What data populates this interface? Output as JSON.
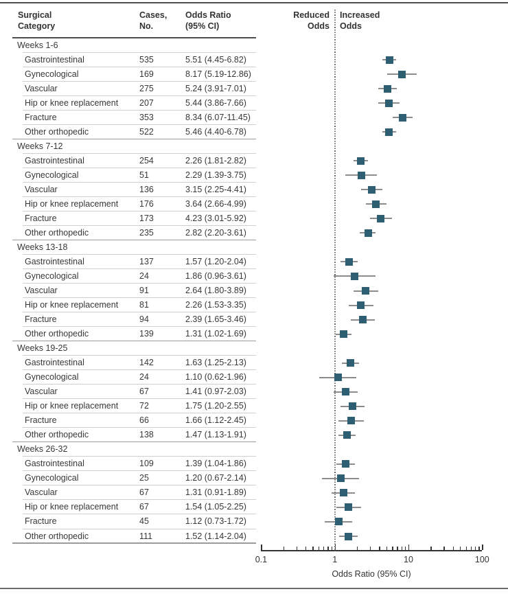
{
  "headers": {
    "col1_line1": "Surgical",
    "col1_line2": "Category",
    "col2_line1": "Cases,",
    "col2_line2": "No.",
    "col3_line1": "Odds Ratio",
    "col3_line2": "(95% CI)",
    "reduced_line1": "Reduced",
    "reduced_line2": "Odds",
    "increased_line1": "Increased",
    "increased_line2": "Odds"
  },
  "plot": {
    "axis_title": "Odds Ratio (95% CI)",
    "axis_scale": "log",
    "axis_range": [
      0.1,
      100
    ],
    "major_ticks": [
      0.1,
      1,
      10,
      100
    ],
    "major_tick_labels": [
      "0.1",
      "1",
      "10",
      "100"
    ],
    "reference_line_at": 1,
    "marker_color": "#2e5e72",
    "ci_color": "#8c8c8c",
    "marker_shape": "square"
  },
  "chart_data": {
    "type": "forest",
    "x_axis": {
      "label": "Odds Ratio (95% CI)",
      "scale": "log",
      "range": [
        0.1,
        100
      ],
      "ticks": [
        0.1,
        1,
        10,
        100
      ]
    },
    "legend_left": "Reduced Odds",
    "legend_right": "Increased Odds",
    "groups": [
      {
        "label": "Weeks 1-6",
        "rows": [
          {
            "category": "Gastrointestinal",
            "cases": "535",
            "or_text": "5.51 (4.45-6.82)",
            "or": 5.51,
            "lo": 4.45,
            "hi": 6.82
          },
          {
            "category": "Gynecological",
            "cases": "169",
            "or_text": "8.17 (5.19-12.86)",
            "or": 8.17,
            "lo": 5.19,
            "hi": 12.86
          },
          {
            "category": "Vascular",
            "cases": "275",
            "or_text": "5.24 (3.91-7.01)",
            "or": 5.24,
            "lo": 3.91,
            "hi": 7.01
          },
          {
            "category": "Hip or knee replacement",
            "cases": "207",
            "or_text": "5.44 (3.86-7.66)",
            "or": 5.44,
            "lo": 3.86,
            "hi": 7.66
          },
          {
            "category": "Fracture",
            "cases": "353",
            "or_text": "8.34 (6.07-11.45)",
            "or": 8.34,
            "lo": 6.07,
            "hi": 11.45
          },
          {
            "category": "Other orthopedic",
            "cases": "522",
            "or_text": "5.46 (4.40-6.78)",
            "or": 5.46,
            "lo": 4.4,
            "hi": 6.78
          }
        ]
      },
      {
        "label": "Weeks 7-12",
        "rows": [
          {
            "category": "Gastrointestinal",
            "cases": "254",
            "or_text": "2.26 (1.81-2.82)",
            "or": 2.26,
            "lo": 1.81,
            "hi": 2.82
          },
          {
            "category": "Gynecological",
            "cases": "51",
            "or_text": "2.29 (1.39-3.75)",
            "or": 2.29,
            "lo": 1.39,
            "hi": 3.75
          },
          {
            "category": "Vascular",
            "cases": "136",
            "or_text": "3.15 (2.25-4.41)",
            "or": 3.15,
            "lo": 2.25,
            "hi": 4.41
          },
          {
            "category": "Hip or knee replacement",
            "cases": "176",
            "or_text": "3.64 (2.66-4.99)",
            "or": 3.64,
            "lo": 2.66,
            "hi": 4.99
          },
          {
            "category": "Fracture",
            "cases": "173",
            "or_text": "4.23 (3.01-5.92)",
            "or": 4.23,
            "lo": 3.01,
            "hi": 5.92
          },
          {
            "category": "Other orthopedic",
            "cases": "235",
            "or_text": "2.82 (2.20-3.61)",
            "or": 2.82,
            "lo": 2.2,
            "hi": 3.61
          }
        ]
      },
      {
        "label": "Weeks 13-18",
        "rows": [
          {
            "category": "Gastrointestinal",
            "cases": "137",
            "or_text": "1.57 (1.20-2.04)",
            "or": 1.57,
            "lo": 1.2,
            "hi": 2.04
          },
          {
            "category": "Gynecological",
            "cases": "24",
            "or_text": "1.86 (0.96-3.61)",
            "or": 1.86,
            "lo": 0.96,
            "hi": 3.61
          },
          {
            "category": "Vascular",
            "cases": "91",
            "or_text": "2.64 (1.80-3.89)",
            "or": 2.64,
            "lo": 1.8,
            "hi": 3.89
          },
          {
            "category": "Hip or knee replacement",
            "cases": "81",
            "or_text": "2.26 (1.53-3.35)",
            "or": 2.26,
            "lo": 1.53,
            "hi": 3.35
          },
          {
            "category": "Fracture",
            "cases": "94",
            "or_text": "2.39 (1.65-3.46)",
            "or": 2.39,
            "lo": 1.65,
            "hi": 3.46
          },
          {
            "category": "Other orthopedic",
            "cases": "139",
            "or_text": "1.31 (1.02-1.69)",
            "or": 1.31,
            "lo": 1.02,
            "hi": 1.69
          }
        ]
      },
      {
        "label": "Weeks 19-25",
        "rows": [
          {
            "category": "Gastrointestinal",
            "cases": "142",
            "or_text": "1.63 (1.25-2.13)",
            "or": 1.63,
            "lo": 1.25,
            "hi": 2.13
          },
          {
            "category": "Gynecological",
            "cases": "24",
            "or_text": "1.10 (0.62-1.96)",
            "or": 1.1,
            "lo": 0.62,
            "hi": 1.96
          },
          {
            "category": "Vascular",
            "cases": "67",
            "or_text": "1.41 (0.97-2.03)",
            "or": 1.41,
            "lo": 0.97,
            "hi": 2.03
          },
          {
            "category": "Hip or knee replacement",
            "cases": "72",
            "or_text": "1.75 (1.20-2.55)",
            "or": 1.75,
            "lo": 1.2,
            "hi": 2.55
          },
          {
            "category": "Fracture",
            "cases": "66",
            "or_text": "1.66 (1.12-2.45)",
            "or": 1.66,
            "lo": 1.12,
            "hi": 2.45
          },
          {
            "category": "Other orthopedic",
            "cases": "138",
            "or_text": "1.47 (1.13-1.91)",
            "or": 1.47,
            "lo": 1.13,
            "hi": 1.91
          }
        ]
      },
      {
        "label": "Weeks 26-32",
        "rows": [
          {
            "category": "Gastrointestinal",
            "cases": "109",
            "or_text": "1.39 (1.04-1.86)",
            "or": 1.39,
            "lo": 1.04,
            "hi": 1.86
          },
          {
            "category": "Gynecological",
            "cases": "25",
            "or_text": "1.20 (0.67-2.14)",
            "or": 1.2,
            "lo": 0.67,
            "hi": 2.14
          },
          {
            "category": "Vascular",
            "cases": "67",
            "or_text": "1.31 (0.91-1.89)",
            "or": 1.31,
            "lo": 0.91,
            "hi": 1.89
          },
          {
            "category": "Hip or knee replacement",
            "cases": "67",
            "or_text": "1.54 (1.05-2.25)",
            "or": 1.54,
            "lo": 1.05,
            "hi": 2.25
          },
          {
            "category": "Fracture",
            "cases": "45",
            "or_text": "1.12 (0.73-1.72)",
            "or": 1.12,
            "lo": 0.73,
            "hi": 1.72
          },
          {
            "category": "Other orthopedic",
            "cases": "111",
            "or_text": "1.52 (1.14-2.04)",
            "or": 1.52,
            "lo": 1.14,
            "hi": 2.04
          }
        ]
      }
    ]
  }
}
